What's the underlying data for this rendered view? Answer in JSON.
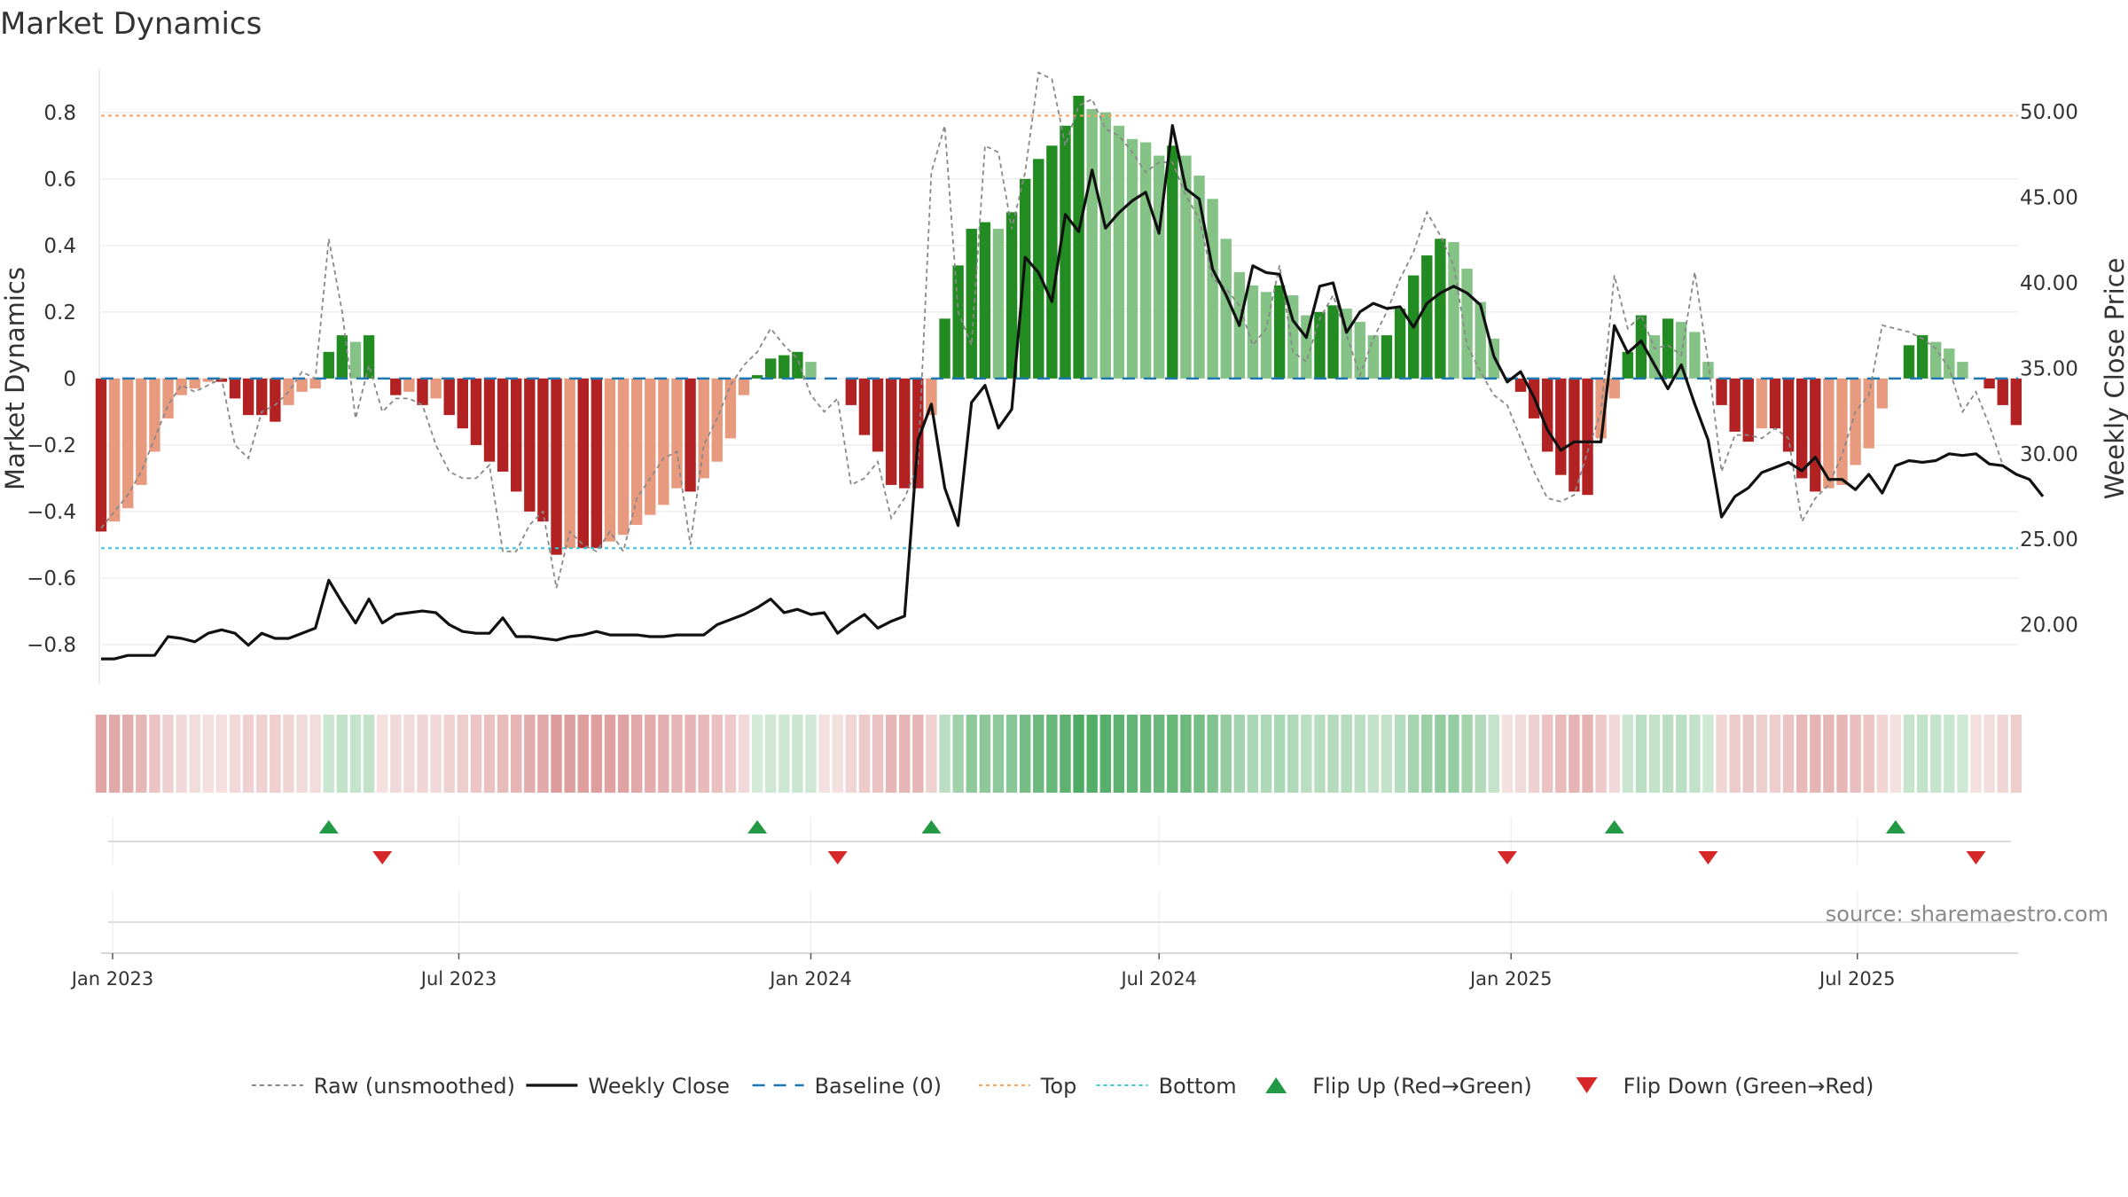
{
  "chart_data": {
    "type": "bar",
    "title": "Market Dynamics",
    "ylabel_left": "Market Dynamics",
    "ylabel_right": "Weekly Close Price",
    "source_text": "source: sharemaestro.com",
    "left_yticks": [
      "0.8",
      "0.6",
      "0.4",
      "0.2",
      "0",
      "−0.2",
      "−0.4",
      "−0.6",
      "−0.8"
    ],
    "left_ytick_values": [
      0.8,
      0.6,
      0.4,
      0.2,
      0,
      -0.2,
      -0.4,
      -0.6,
      -0.8
    ],
    "right_yticks": [
      "50.00",
      "45.00",
      "40.00",
      "35.00",
      "30.00",
      "25.00",
      "20.00"
    ],
    "right_ytick_values": [
      50,
      45,
      40,
      35,
      30,
      25,
      20
    ],
    "ylim_left": [
      -0.92,
      0.93
    ],
    "ylim_right": [
      16.5,
      52.5
    ],
    "x_axis": {
      "start": "2022-12-26",
      "end": "2025-09-23",
      "tick_labels": [
        "Jan 2023",
        "Jul 2023",
        "Jan 2024",
        "Jul 2024",
        "Jan 2025",
        "Jul 2025"
      ],
      "tick_dates": [
        "2023-01-01",
        "2023-07-01",
        "2024-01-01",
        "2024-07-01",
        "2025-01-01",
        "2025-07-01"
      ]
    },
    "week_start": "2022-12-26",
    "dynamics": [
      -0.46,
      -0.43,
      -0.39,
      -0.32,
      -0.22,
      -0.12,
      -0.05,
      -0.03,
      -0.01,
      -0.01,
      -0.06,
      -0.11,
      -0.11,
      -0.13,
      -0.08,
      -0.04,
      -0.03,
      0.08,
      0.13,
      0.11,
      0.13,
      0.0,
      -0.05,
      -0.04,
      -0.08,
      -0.06,
      -0.11,
      -0.15,
      -0.2,
      -0.25,
      -0.28,
      -0.34,
      -0.4,
      -0.43,
      -0.53,
      -0.51,
      -0.51,
      -0.51,
      -0.49,
      -0.47,
      -0.44,
      -0.41,
      -0.38,
      -0.33,
      -0.34,
      -0.3,
      -0.25,
      -0.18,
      -0.05,
      0.01,
      0.06,
      0.07,
      0.08,
      0.05,
      0.0,
      0.0,
      -0.08,
      -0.17,
      -0.22,
      -0.32,
      -0.33,
      -0.33,
      -0.11,
      0.18,
      0.34,
      0.45,
      0.47,
      0.45,
      0.5,
      0.6,
      0.66,
      0.7,
      0.76,
      0.85,
      0.81,
      0.8,
      0.76,
      0.72,
      0.71,
      0.67,
      0.7,
      0.67,
      0.61,
      0.54,
      0.42,
      0.32,
      0.28,
      0.26,
      0.28,
      0.25,
      0.19,
      0.2,
      0.22,
      0.21,
      0.17,
      0.13,
      0.13,
      0.21,
      0.31,
      0.37,
      0.42,
      0.41,
      0.33,
      0.23,
      0.12,
      0.0,
      -0.04,
      -0.12,
      -0.22,
      -0.29,
      -0.34,
      -0.35,
      -0.18,
      -0.06,
      0.08,
      0.19,
      0.13,
      0.18,
      0.17,
      0.14,
      0.05,
      -0.08,
      -0.16,
      -0.19,
      -0.15,
      -0.15,
      -0.22,
      -0.3,
      -0.34,
      -0.33,
      -0.32,
      -0.26,
      -0.21,
      -0.09,
      0.0,
      0.1,
      0.13,
      0.11,
      0.09,
      0.05,
      0.0,
      -0.03,
      -0.08,
      -0.14
    ],
    "raw": [
      -0.45,
      -0.4,
      -0.35,
      -0.28,
      -0.18,
      -0.08,
      -0.02,
      -0.04,
      -0.02,
      0.0,
      -0.2,
      -0.24,
      -0.1,
      -0.08,
      -0.04,
      0.02,
      0.0,
      0.42,
      0.2,
      -0.12,
      0.04,
      -0.1,
      -0.06,
      -0.06,
      -0.08,
      -0.2,
      -0.28,
      -0.3,
      -0.3,
      -0.26,
      -0.52,
      -0.52,
      -0.44,
      -0.4,
      -0.63,
      -0.46,
      -0.5,
      -0.52,
      -0.46,
      -0.52,
      -0.36,
      -0.3,
      -0.24,
      -0.22,
      -0.5,
      -0.2,
      -0.12,
      -0.02,
      0.04,
      0.08,
      0.15,
      0.1,
      0.06,
      -0.05,
      -0.1,
      -0.06,
      -0.32,
      -0.3,
      -0.25,
      -0.42,
      -0.36,
      -0.26,
      0.62,
      0.76,
      0.2,
      0.1,
      0.7,
      0.68,
      0.45,
      0.62,
      0.92,
      0.9,
      0.7,
      0.82,
      0.84,
      0.75,
      0.73,
      0.68,
      0.62,
      0.65,
      0.65,
      0.55,
      0.48,
      0.3,
      0.27,
      0.22,
      0.1,
      0.15,
      0.34,
      0.08,
      0.05,
      0.18,
      0.25,
      0.13,
      0.01,
      0.12,
      0.2,
      0.3,
      0.38,
      0.5,
      0.43,
      0.34,
      0.1,
      0.02,
      -0.05,
      -0.08,
      -0.18,
      -0.28,
      -0.36,
      -0.37,
      -0.35,
      -0.22,
      -0.1,
      0.31,
      0.15,
      0.19,
      0.09,
      0.1,
      0.07,
      0.32,
      0.05,
      -0.28,
      -0.17,
      -0.17,
      -0.18,
      -0.15,
      -0.18,
      -0.43,
      -0.36,
      -0.32,
      -0.23,
      -0.1,
      -0.05,
      0.16,
      0.15,
      0.14,
      0.12,
      0.09,
      0.03,
      -0.1,
      -0.04,
      -0.14,
      -0.26
    ],
    "close": [
      18.0,
      18.0,
      18.2,
      18.2,
      18.2,
      19.3,
      19.2,
      19.0,
      19.5,
      19.7,
      19.5,
      18.8,
      19.5,
      19.2,
      19.2,
      19.5,
      19.8,
      22.6,
      21.3,
      20.1,
      21.5,
      20.1,
      20.6,
      20.7,
      20.8,
      20.7,
      20.0,
      19.6,
      19.5,
      19.5,
      20.4,
      19.3,
      19.3,
      19.2,
      19.1,
      19.3,
      19.4,
      19.6,
      19.4,
      19.4,
      19.4,
      19.3,
      19.3,
      19.4,
      19.4,
      19.4,
      20.0,
      20.3,
      20.6,
      21.0,
      21.5,
      20.7,
      20.9,
      20.6,
      20.7,
      19.5,
      20.1,
      20.6,
      19.8,
      20.2,
      20.5,
      30.8,
      32.9,
      28.0,
      25.8,
      33.0,
      34.0,
      31.5,
      32.6,
      41.5,
      40.6,
      38.9,
      44.0,
      43.0,
      46.6,
      43.2,
      44.1,
      44.8,
      45.3,
      42.9,
      49.2,
      45.5,
      44.9,
      40.8,
      39.3,
      37.5,
      41.0,
      40.6,
      40.5,
      37.8,
      36.8,
      39.8,
      40.0,
      37.1,
      38.3,
      38.8,
      38.5,
      38.6,
      37.4,
      38.8,
      39.4,
      39.8,
      39.4,
      38.7,
      35.7,
      34.2,
      34.8,
      33.3,
      31.4,
      30.2,
      30.7,
      30.7,
      30.7,
      37.5,
      35.9,
      36.6,
      35.2,
      33.8,
      35.2,
      32.9,
      30.8,
      26.3,
      27.5,
      28.0,
      28.9,
      29.2,
      29.5,
      29.0,
      29.8,
      28.5,
      28.5,
      27.9,
      28.8,
      27.7,
      29.3,
      29.6,
      29.5,
      29.6,
      30.0,
      29.9,
      30.0,
      29.4,
      29.3,
      28.8,
      28.5,
      27.5
    ],
    "flip_up_weeks": [
      17,
      49,
      62,
      113,
      134
    ],
    "flip_down_weeks": [
      21,
      55,
      105,
      120,
      140
    ],
    "top_line": 0.79,
    "bottom_line": -0.51,
    "baseline": 0,
    "colors": {
      "bar_green_dark": "#228b22",
      "bar_green_light": "#85c285",
      "bar_red_dark": "#b22222",
      "bar_red_light": "#e89a7e",
      "close_line": "#111111",
      "raw_line": "#888888",
      "baseline": "#1f77b4",
      "top": "#f4a261",
      "bottom": "#3ec6d6",
      "flip_up": "#229944",
      "flip_down": "#d62828"
    },
    "legend": [
      {
        "label": "Raw (unsmoothed)",
        "style": "raw"
      },
      {
        "label": "Weekly Close",
        "style": "close"
      },
      {
        "label": "Baseline (0)",
        "style": "baseline"
      },
      {
        "label": "Top",
        "style": "top"
      },
      {
        "label": "Bottom",
        "style": "bottom"
      },
      {
        "label": "Flip Up (Red→Green)",
        "style": "flip_up"
      },
      {
        "label": "Flip Down (Green→Red)",
        "style": "flip_down"
      }
    ]
  }
}
